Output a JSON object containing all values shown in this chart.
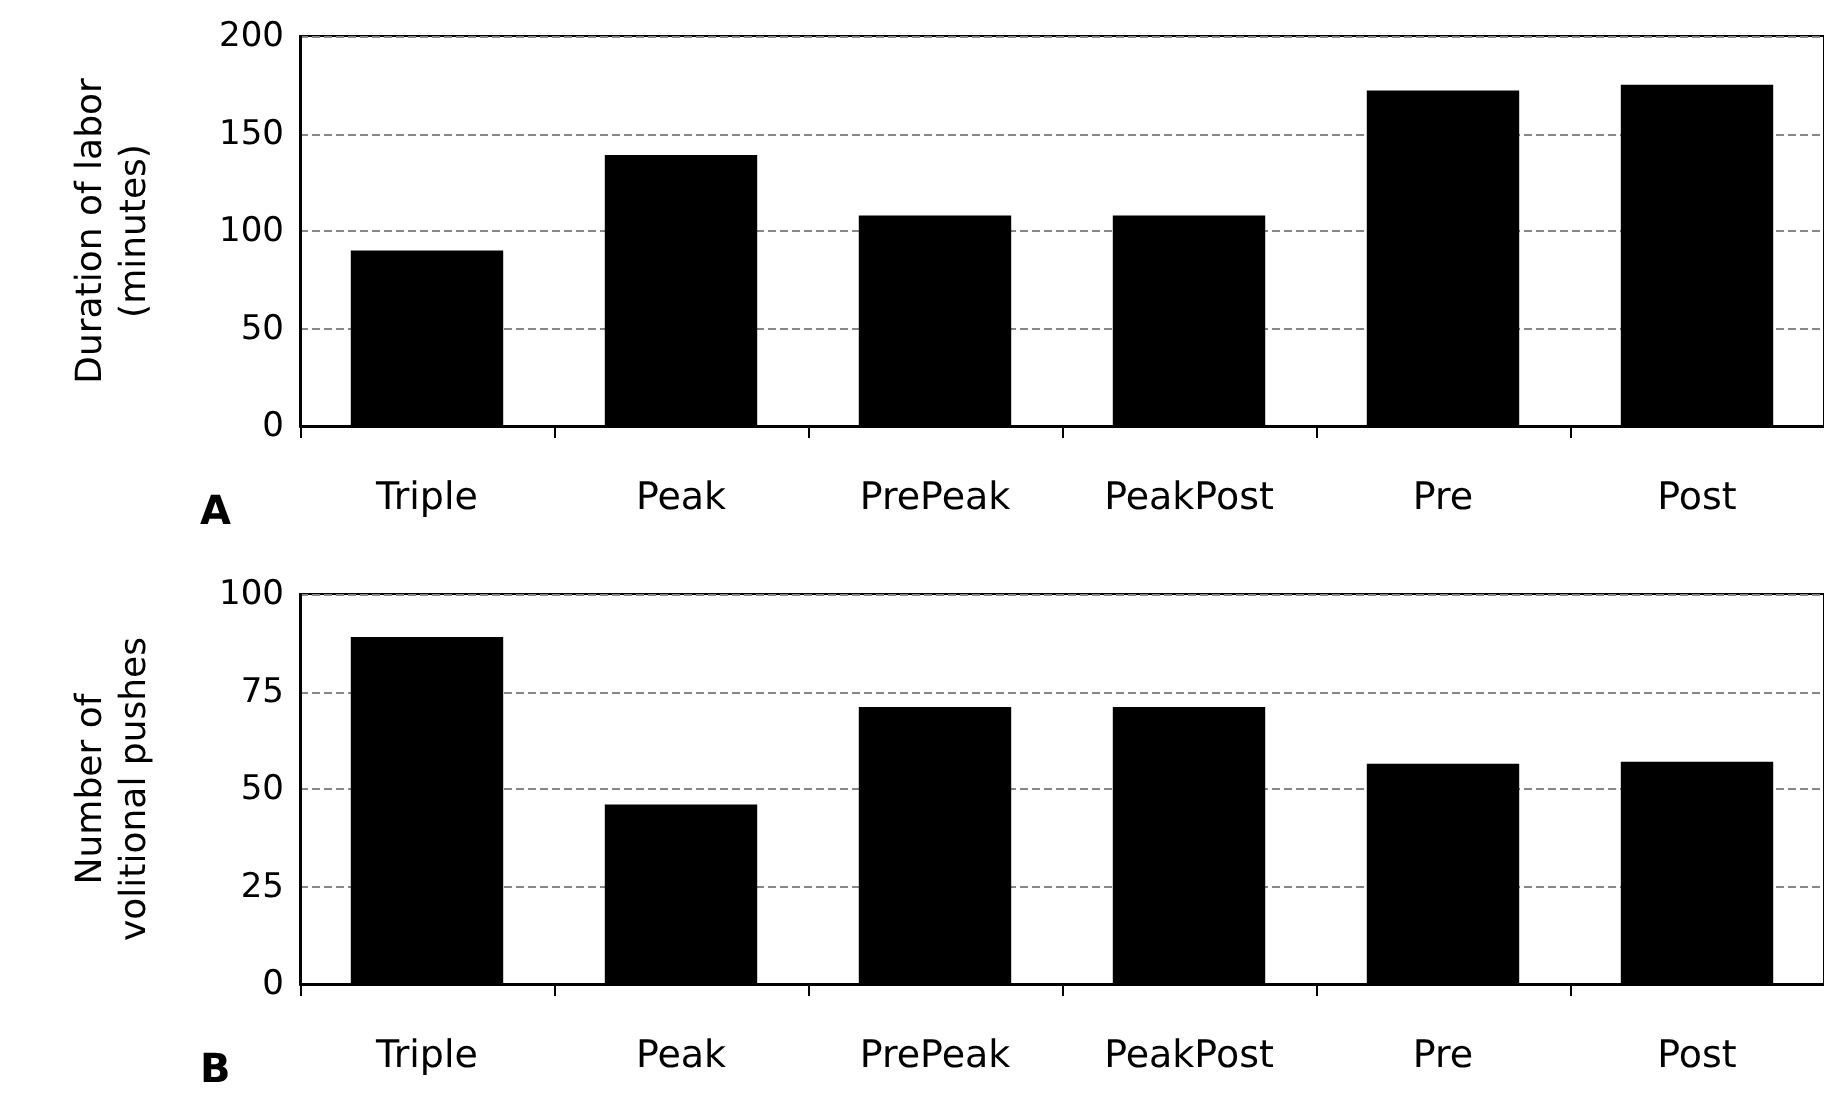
{
  "chart_data": [
    {
      "type": "bar",
      "ylabel": "Duration of labor\n(minutes)",
      "annotations": [
        "A"
      ],
      "categories": [
        "Triple",
        "Peak",
        "PrePeak",
        "PeakPost",
        "Pre",
        "Post"
      ],
      "values": [
        90,
        139,
        108,
        108,
        172,
        175
      ],
      "color": "#000000",
      "ylim": [
        0,
        200
      ],
      "yticks": [
        0,
        50,
        100,
        150,
        200
      ],
      "grid": "y"
    },
    {
      "type": "bar",
      "ylabel": "Number of\nvolitional pushes",
      "annotations": [
        "B"
      ],
      "categories": [
        "Triple",
        "Peak",
        "PrePeak",
        "PeakPost",
        "Pre",
        "Post"
      ],
      "values": [
        89,
        46,
        71,
        71,
        56.5,
        57
      ],
      "color": "#000000",
      "ylim": [
        0,
        100
      ],
      "yticks": [
        0,
        25,
        50,
        75,
        100
      ],
      "grid": "y"
    }
  ]
}
